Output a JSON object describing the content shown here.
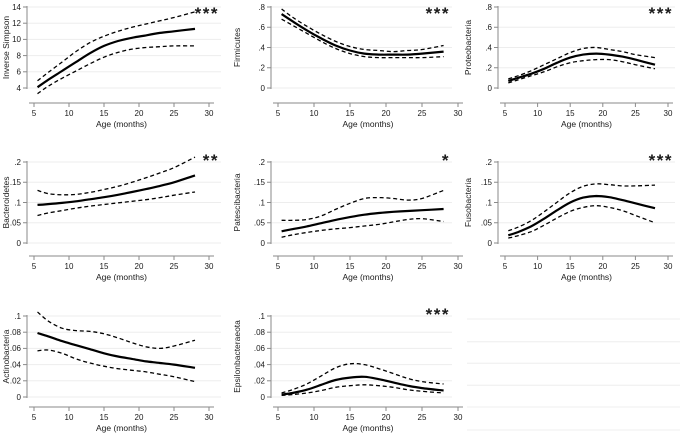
{
  "figure": {
    "description": "Smoothed age trajectories of gut microbiome diversity and phylum relative abundances with dashed 95% confidence bands",
    "xlabel": "Age (months)",
    "significance_marker": "*"
  },
  "colors": {
    "curve": "#000000",
    "axis": "#8a8a8a",
    "gridline": "#ededed",
    "empty_gridline": "#f2f2f2",
    "text": "#1a1a1a",
    "background": "#ffffff"
  },
  "chart_data": [
    {
      "type": "line",
      "name": "inverse-simpson",
      "ylabel": "Inverse Simpson",
      "xlabel": "Age (months)",
      "significance": "***",
      "legend": "none",
      "grid": true,
      "xticks": [
        5,
        10,
        15,
        20,
        25,
        30
      ],
      "xlim": [
        4.3,
        30.7
      ],
      "yticks": [
        4,
        6,
        8,
        10,
        12,
        14
      ],
      "ytick_labels": [
        "4",
        "6",
        "8",
        "10",
        "12",
        "14"
      ],
      "ylim": [
        4,
        14
      ],
      "x": [
        5.5,
        7,
        9,
        11,
        13,
        15,
        17,
        19,
        21,
        23,
        25,
        28
      ],
      "series": [
        {
          "name": "mean",
          "style": "solid",
          "values": [
            4.1,
            5.0,
            6.1,
            7.2,
            8.3,
            9.2,
            9.8,
            10.2,
            10.5,
            10.8,
            11.0,
            11.3
          ]
        },
        {
          "name": "upper-ci",
          "style": "dashed",
          "values": [
            4.9,
            5.9,
            7.2,
            8.5,
            9.6,
            10.4,
            11.0,
            11.5,
            11.9,
            12.3,
            12.7,
            13.4
          ]
        },
        {
          "name": "lower-ci",
          "style": "dashed",
          "values": [
            3.3,
            4.2,
            5.2,
            6.1,
            7.0,
            7.8,
            8.4,
            8.8,
            9.0,
            9.1,
            9.2,
            9.2
          ]
        }
      ]
    },
    {
      "type": "line",
      "name": "firmicutes",
      "ylabel": "Firmicutes",
      "xlabel": "Age (months)",
      "significance": "***",
      "legend": "none",
      "grid": true,
      "xticks": [
        5,
        10,
        15,
        20,
        25,
        30
      ],
      "xlim": [
        4.3,
        30.7
      ],
      "yticks": [
        0,
        0.2,
        0.4,
        0.6,
        0.8
      ],
      "ytick_labels": [
        "0",
        ".2",
        ".4",
        ".6",
        ".8"
      ],
      "ylim": [
        0,
        0.8
      ],
      "x": [
        5.5,
        7,
        9,
        11,
        13,
        15,
        17,
        19,
        21,
        23,
        25,
        28
      ],
      "series": [
        {
          "name": "mean",
          "style": "solid",
          "values": [
            0.73,
            0.66,
            0.57,
            0.49,
            0.42,
            0.37,
            0.34,
            0.33,
            0.33,
            0.33,
            0.34,
            0.36
          ]
        },
        {
          "name": "upper-ci",
          "style": "dashed",
          "values": [
            0.78,
            0.7,
            0.61,
            0.53,
            0.46,
            0.41,
            0.38,
            0.37,
            0.36,
            0.37,
            0.38,
            0.42
          ]
        },
        {
          "name": "lower-ci",
          "style": "dashed",
          "values": [
            0.68,
            0.62,
            0.54,
            0.46,
            0.39,
            0.34,
            0.31,
            0.3,
            0.3,
            0.3,
            0.3,
            0.31
          ]
        }
      ]
    },
    {
      "type": "line",
      "name": "proteobacteria",
      "ylabel": "Proteobacteria",
      "xlabel": "Age (months)",
      "significance": "***",
      "legend": "none",
      "grid": true,
      "xticks": [
        5,
        10,
        15,
        20,
        25,
        30
      ],
      "xlim": [
        4.3,
        30.7
      ],
      "yticks": [
        0,
        0.2,
        0.4,
        0.6,
        0.8
      ],
      "ytick_labels": [
        "0",
        ".2",
        ".4",
        ".6",
        ".8"
      ],
      "ylim": [
        0,
        0.8
      ],
      "x": [
        5.5,
        7,
        9,
        11,
        13,
        15,
        17,
        19,
        21,
        23,
        25,
        28
      ],
      "series": [
        {
          "name": "mean",
          "style": "solid",
          "values": [
            0.07,
            0.1,
            0.14,
            0.19,
            0.25,
            0.3,
            0.33,
            0.34,
            0.33,
            0.31,
            0.28,
            0.23
          ]
        },
        {
          "name": "upper-ci",
          "style": "dashed",
          "values": [
            0.09,
            0.12,
            0.17,
            0.23,
            0.29,
            0.35,
            0.39,
            0.4,
            0.38,
            0.36,
            0.33,
            0.3
          ]
        },
        {
          "name": "lower-ci",
          "style": "dashed",
          "values": [
            0.05,
            0.08,
            0.12,
            0.16,
            0.21,
            0.25,
            0.27,
            0.28,
            0.28,
            0.26,
            0.23,
            0.19
          ]
        }
      ]
    },
    {
      "type": "line",
      "name": "bacteroidetes",
      "ylabel": "Bacteroidetes",
      "xlabel": "Age (months)",
      "significance": "**",
      "legend": "none",
      "grid": true,
      "xticks": [
        5,
        10,
        15,
        20,
        25,
        30
      ],
      "xlim": [
        4.3,
        30.7
      ],
      "yticks": [
        0,
        0.05,
        0.1,
        0.15,
        0.2
      ],
      "ytick_labels": [
        "0",
        ".05",
        ".1",
        ".15",
        ".2"
      ],
      "ylim": [
        0,
        0.2
      ],
      "x": [
        5.5,
        7,
        9,
        11,
        13,
        15,
        17,
        19,
        21,
        23,
        25,
        28
      ],
      "series": [
        {
          "name": "mean",
          "style": "solid",
          "values": [
            0.094,
            0.096,
            0.099,
            0.103,
            0.108,
            0.113,
            0.119,
            0.126,
            0.133,
            0.141,
            0.15,
            0.167
          ]
        },
        {
          "name": "upper-ci",
          "style": "dashed",
          "values": [
            0.13,
            0.122,
            0.119,
            0.12,
            0.125,
            0.132,
            0.14,
            0.15,
            0.161,
            0.173,
            0.186,
            0.212
          ]
        },
        {
          "name": "lower-ci",
          "style": "dashed",
          "values": [
            0.068,
            0.074,
            0.08,
            0.086,
            0.091,
            0.095,
            0.099,
            0.103,
            0.107,
            0.112,
            0.118,
            0.126
          ]
        }
      ]
    },
    {
      "type": "line",
      "name": "patescibacteria",
      "ylabel": "Patescibacteria",
      "xlabel": "Age (months)",
      "significance": "*",
      "legend": "none",
      "grid": true,
      "xticks": [
        5,
        10,
        15,
        20,
        25,
        30
      ],
      "xlim": [
        4.3,
        30.7
      ],
      "yticks": [
        0,
        0.05,
        0.1,
        0.15,
        0.2
      ],
      "ytick_labels": [
        "0",
        ".05",
        ".1",
        ".15",
        ".2"
      ],
      "ylim": [
        0,
        0.2
      ],
      "x": [
        5.5,
        7,
        9,
        11,
        13,
        15,
        17,
        19,
        21,
        23,
        25,
        28
      ],
      "series": [
        {
          "name": "mean",
          "style": "solid",
          "values": [
            0.029,
            0.034,
            0.041,
            0.049,
            0.057,
            0.064,
            0.07,
            0.074,
            0.077,
            0.079,
            0.081,
            0.084
          ]
        },
        {
          "name": "upper-ci",
          "style": "dashed",
          "values": [
            0.056,
            0.056,
            0.058,
            0.067,
            0.083,
            0.098,
            0.11,
            0.112,
            0.11,
            0.106,
            0.11,
            0.13
          ]
        },
        {
          "name": "lower-ci",
          "style": "dashed",
          "values": [
            0.014,
            0.02,
            0.026,
            0.031,
            0.035,
            0.038,
            0.042,
            0.046,
            0.052,
            0.058,
            0.06,
            0.053
          ]
        }
      ]
    },
    {
      "type": "line",
      "name": "fusobacteria",
      "ylabel": "Fusobacteria",
      "xlabel": "Age (months)",
      "significance": "***",
      "legend": "none",
      "grid": true,
      "xticks": [
        5,
        10,
        15,
        20,
        25,
        30
      ],
      "xlim": [
        4.3,
        30.7
      ],
      "yticks": [
        0,
        0.05,
        0.1,
        0.15,
        0.2
      ],
      "ytick_labels": [
        "0",
        ".05",
        ".1",
        ".15",
        ".2"
      ],
      "ylim": [
        0,
        0.2
      ],
      "x": [
        5.5,
        7,
        9,
        11,
        13,
        15,
        17,
        19,
        21,
        23,
        25,
        28
      ],
      "series": [
        {
          "name": "mean",
          "style": "solid",
          "values": [
            0.019,
            0.027,
            0.041,
            0.06,
            0.081,
            0.1,
            0.112,
            0.116,
            0.113,
            0.106,
            0.098,
            0.086
          ]
        },
        {
          "name": "upper-ci",
          "style": "dashed",
          "values": [
            0.03,
            0.039,
            0.055,
            0.077,
            0.101,
            0.124,
            0.14,
            0.146,
            0.144,
            0.141,
            0.141,
            0.143
          ]
        },
        {
          "name": "lower-ci",
          "style": "dashed",
          "values": [
            0.012,
            0.018,
            0.028,
            0.044,
            0.062,
            0.078,
            0.088,
            0.092,
            0.088,
            0.08,
            0.068,
            0.05
          ]
        }
      ]
    },
    {
      "type": "line",
      "name": "actinobacteria",
      "ylabel": "Actinobacteria",
      "xlabel": "Age (months)",
      "significance": "",
      "legend": "none",
      "grid": true,
      "xticks": [
        5,
        10,
        15,
        20,
        25,
        30
      ],
      "xlim": [
        4.3,
        30.7
      ],
      "yticks": [
        0,
        0.02,
        0.04,
        0.06,
        0.08,
        0.1
      ],
      "ytick_labels": [
        "0",
        ".02",
        ".04",
        ".06",
        ".08",
        ".1"
      ],
      "ylim": [
        0,
        0.1
      ],
      "x": [
        5.5,
        7,
        9,
        11,
        13,
        15,
        17,
        19,
        21,
        23,
        25,
        28
      ],
      "series": [
        {
          "name": "mean",
          "style": "solid",
          "values": [
            0.079,
            0.075,
            0.069,
            0.064,
            0.059,
            0.054,
            0.05,
            0.047,
            0.044,
            0.042,
            0.04,
            0.036
          ]
        },
        {
          "name": "upper-ci",
          "style": "dashed",
          "values": [
            0.105,
            0.094,
            0.085,
            0.082,
            0.081,
            0.078,
            0.073,
            0.067,
            0.062,
            0.06,
            0.063,
            0.07
          ]
        },
        {
          "name": "lower-ci",
          "style": "dashed",
          "values": [
            0.057,
            0.058,
            0.054,
            0.047,
            0.042,
            0.038,
            0.035,
            0.033,
            0.031,
            0.028,
            0.025,
            0.019
          ]
        }
      ]
    },
    {
      "type": "line",
      "name": "epsilonbacteraeota",
      "ylabel": "Epsilonbacteraeota",
      "xlabel": "Age (months)",
      "significance": "***",
      "legend": "none",
      "grid": true,
      "xticks": [
        5,
        10,
        15,
        20,
        25,
        30
      ],
      "xlim": [
        4.3,
        30.7
      ],
      "yticks": [
        0,
        0.02,
        0.04,
        0.06,
        0.08,
        0.1
      ],
      "ytick_labels": [
        "0",
        ".02",
        ".04",
        ".06",
        ".08",
        ".1"
      ],
      "ylim": [
        0,
        0.1
      ],
      "x": [
        5.5,
        7,
        9,
        11,
        13,
        15,
        17,
        19,
        21,
        23,
        25,
        28
      ],
      "series": [
        {
          "name": "mean",
          "style": "solid",
          "values": [
            0.003,
            0.005,
            0.009,
            0.015,
            0.021,
            0.024,
            0.025,
            0.022,
            0.018,
            0.014,
            0.011,
            0.008
          ]
        },
        {
          "name": "upper-ci",
          "style": "dashed",
          "values": [
            0.005,
            0.009,
            0.016,
            0.026,
            0.036,
            0.041,
            0.04,
            0.035,
            0.029,
            0.023,
            0.019,
            0.016
          ]
        },
        {
          "name": "lower-ci",
          "style": "dashed",
          "values": [
            0.002,
            0.003,
            0.005,
            0.008,
            0.012,
            0.014,
            0.015,
            0.014,
            0.012,
            0.009,
            0.007,
            0.005
          ]
        }
      ]
    },
    {
      "type": "empty",
      "name": "empty-panel",
      "gridline_count": 6
    }
  ]
}
